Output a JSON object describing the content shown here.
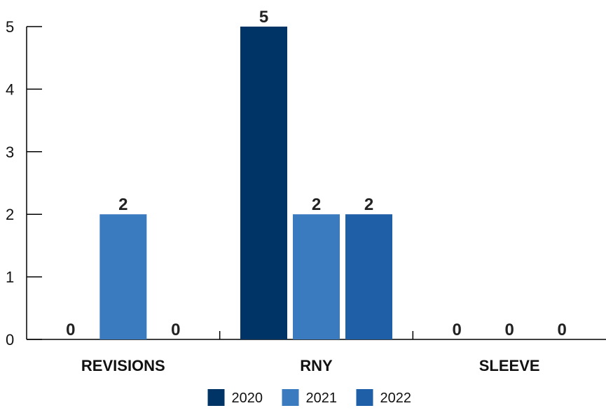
{
  "chart_data": {
    "type": "bar",
    "categories": [
      "REVISIONS",
      "RNY",
      "SLEEVE"
    ],
    "series": [
      {
        "name": "2020",
        "values": [
          0,
          5,
          0
        ],
        "color": "#003366"
      },
      {
        "name": "2021",
        "values": [
          2,
          2,
          0
        ],
        "color": "#3a7bbf"
      },
      {
        "name": "2022",
        "values": [
          0,
          2,
          0
        ],
        "color": "#1f5fa8"
      }
    ],
    "ylim": [
      0,
      5
    ],
    "yticks": [
      0,
      1,
      2,
      3,
      4,
      5
    ],
    "grid": false,
    "legend_position": "bottom-center",
    "title": "",
    "xlabel": "",
    "ylabel": ""
  }
}
